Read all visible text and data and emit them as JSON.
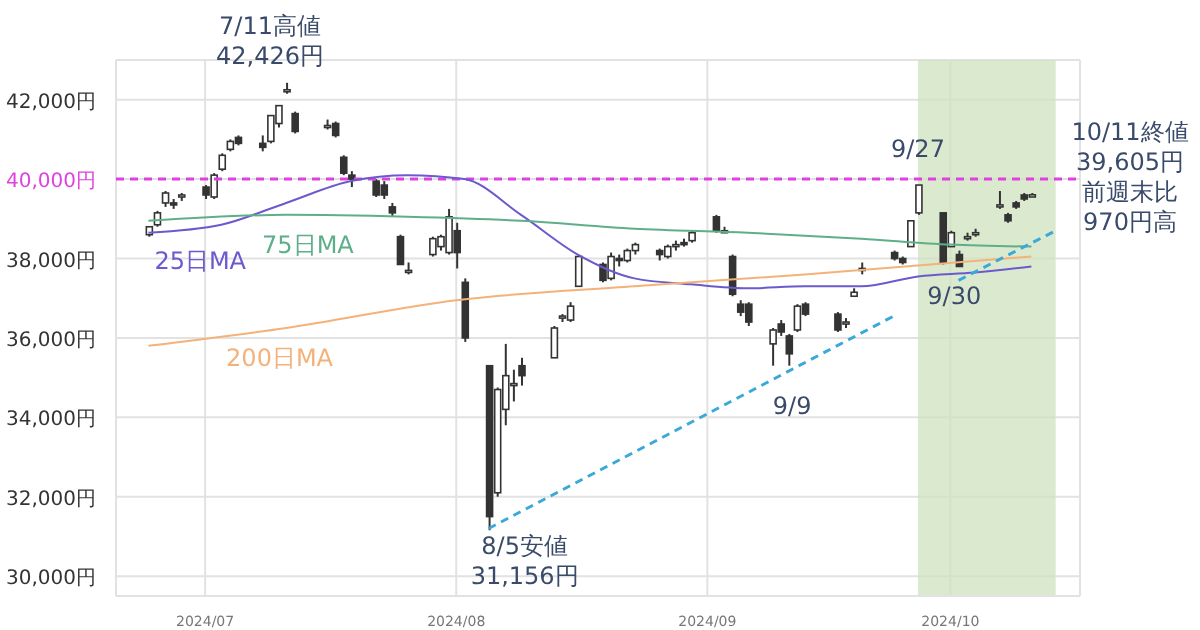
{
  "chart_data": {
    "type": "candlestick",
    "grid": true,
    "marker": "none",
    "x": [
      "2024-06-24",
      "2024-06-25",
      "2024-06-26",
      "2024-06-27",
      "2024-06-28",
      "2024-07-01",
      "2024-07-02",
      "2024-07-03",
      "2024-07-04",
      "2024-07-05",
      "2024-07-08",
      "2024-07-09",
      "2024-07-10",
      "2024-07-11",
      "2024-07-12",
      "2024-07-16",
      "2024-07-17",
      "2024-07-18",
      "2024-07-19",
      "2024-07-22",
      "2024-07-23",
      "2024-07-24",
      "2024-07-25",
      "2024-07-26",
      "2024-07-29",
      "2024-07-30",
      "2024-07-31",
      "2024-08-01",
      "2024-08-02",
      "2024-08-05",
      "2024-08-06",
      "2024-08-07",
      "2024-08-08",
      "2024-08-09",
      "2024-08-13",
      "2024-08-14",
      "2024-08-15",
      "2024-08-16",
      "2024-08-19",
      "2024-08-20",
      "2024-08-21",
      "2024-08-22",
      "2024-08-23",
      "2024-08-26",
      "2024-08-27",
      "2024-08-28",
      "2024-08-29",
      "2024-08-30",
      "2024-09-02",
      "2024-09-03",
      "2024-09-04",
      "2024-09-05",
      "2024-09-06",
      "2024-09-09",
      "2024-09-10",
      "2024-09-11",
      "2024-09-12",
      "2024-09-13",
      "2024-09-17",
      "2024-09-18",
      "2024-09-19",
      "2024-09-20",
      "2024-09-24",
      "2024-09-25",
      "2024-09-26",
      "2024-09-27",
      "2024-09-30",
      "2024-10-01",
      "2024-10-02",
      "2024-10-03",
      "2024-10-04",
      "2024-10-07",
      "2024-10-08",
      "2024-10-09",
      "2024-10-10",
      "2024-10-11"
    ],
    "ohlc": [
      [
        38600,
        38800,
        38550,
        38800
      ],
      [
        38850,
        39200,
        38800,
        39150
      ],
      [
        39400,
        39700,
        39300,
        39650
      ],
      [
        39400,
        39500,
        39250,
        39350
      ],
      [
        39550,
        39650,
        39450,
        39600
      ],
      [
        39800,
        39850,
        39500,
        39600
      ],
      [
        39550,
        40150,
        39500,
        40100
      ],
      [
        40250,
        40650,
        40200,
        40600
      ],
      [
        40750,
        41000,
        40700,
        40950
      ],
      [
        41050,
        41100,
        40850,
        40900
      ],
      [
        40900,
        41100,
        40700,
        40800
      ],
      [
        40950,
        41600,
        40900,
        41600
      ],
      [
        41400,
        41850,
        41300,
        41850
      ],
      [
        42200,
        42426,
        42150,
        42250
      ],
      [
        41650,
        41700,
        41150,
        41200
      ],
      [
        41300,
        41500,
        41250,
        41350
      ],
      [
        41400,
        41450,
        41050,
        41100
      ],
      [
        40550,
        40600,
        40100,
        40150
      ],
      [
        40100,
        40200,
        39800,
        40000
      ],
      [
        39950,
        40000,
        39550,
        39600
      ],
      [
        39850,
        39950,
        39500,
        39600
      ],
      [
        39300,
        39400,
        39050,
        39150
      ],
      [
        38550,
        38600,
        37850,
        37850
      ],
      [
        37700,
        37900,
        37600,
        37700
      ],
      [
        38100,
        38550,
        38050,
        38500
      ],
      [
        38300,
        38600,
        38200,
        38550
      ],
      [
        38150,
        39250,
        38100,
        39050
      ],
      [
        38700,
        38900,
        37750,
        38150
      ],
      [
        37400,
        37500,
        35900,
        36000
      ],
      [
        35300,
        35300,
        31156,
        31500
      ],
      [
        32100,
        34750,
        32000,
        34700
      ],
      [
        34200,
        35850,
        33800,
        35050
      ],
      [
        34800,
        35200,
        34400,
        34850
      ],
      [
        35300,
        35500,
        34800,
        35050
      ],
      [
        35500,
        36300,
        35500,
        36250
      ],
      [
        36550,
        36600,
        36400,
        36550
      ],
      [
        36450,
        36900,
        36400,
        36800
      ],
      [
        37300,
        38100,
        37300,
        38050
      ],
      [
        37850,
        37900,
        37400,
        37450
      ],
      [
        37500,
        38150,
        37450,
        38050
      ],
      [
        38000,
        38100,
        37800,
        37950
      ],
      [
        37950,
        38250,
        37900,
        38200
      ],
      [
        38200,
        38400,
        38100,
        38350
      ],
      [
        38200,
        38250,
        37950,
        38100
      ],
      [
        38050,
        38350,
        38000,
        38300
      ],
      [
        38300,
        38450,
        38200,
        38350
      ],
      [
        38400,
        38500,
        38300,
        38350
      ],
      [
        38450,
        38700,
        38400,
        38650
      ],
      [
        39050,
        39100,
        38650,
        38700
      ],
      [
        38700,
        38800,
        38650,
        38700
      ],
      [
        38050,
        38100,
        37050,
        37100
      ],
      [
        36850,
        36950,
        36550,
        36650
      ],
      [
        36850,
        36900,
        36300,
        36400
      ],
      [
        35850,
        36250,
        35300,
        36200
      ],
      [
        36350,
        36450,
        36050,
        36150
      ],
      [
        36050,
        36100,
        35300,
        35600
      ],
      [
        36200,
        36850,
        36150,
        36800
      ],
      [
        36850,
        36900,
        36550,
        36600
      ],
      [
        36600,
        36650,
        36150,
        36200
      ],
      [
        36400,
        36500,
        36250,
        36400
      ],
      [
        37050,
        37250,
        37050,
        37150
      ],
      [
        37700,
        37900,
        37600,
        37750
      ],
      [
        38150,
        38200,
        37950,
        38000
      ],
      [
        38000,
        38050,
        37850,
        37900
      ],
      [
        38300,
        38950,
        38300,
        38950
      ],
      [
        39150,
        39850,
        39100,
        39850
      ],
      [
        39150,
        39150,
        37850,
        37900
      ],
      [
        38300,
        38700,
        38300,
        38650
      ],
      [
        38100,
        38200,
        37800,
        37800
      ],
      [
        38550,
        38650,
        38450,
        38550
      ],
      [
        38600,
        38750,
        38550,
        38650
      ],
      [
        39300,
        39700,
        39250,
        39350
      ],
      [
        39100,
        39150,
        38900,
        38950
      ],
      [
        39400,
        39450,
        39250,
        39300
      ],
      [
        39600,
        39650,
        39450,
        39500
      ],
      [
        39550,
        39650,
        39550,
        39605
      ]
    ],
    "series": [
      {
        "type": "line",
        "name": "25日MA",
        "color": "#6a5acd",
        "x": [
          "2024-06-24",
          "2024-07-03",
          "2024-07-11",
          "2024-07-19",
          "2024-07-26",
          "2024-08-02",
          "2024-08-09",
          "2024-08-16",
          "2024-08-23",
          "2024-08-30",
          "2024-09-06",
          "2024-09-13",
          "2024-09-20",
          "2024-09-27",
          "2024-10-04",
          "2024-10-11"
        ],
        "values": [
          38650,
          38850,
          39400,
          39950,
          40100,
          40000,
          39100,
          38100,
          37500,
          37350,
          37250,
          37300,
          37300,
          37550,
          37650,
          37800
        ]
      },
      {
        "type": "line",
        "name": "75日MA",
        "color": "#5fae8a",
        "x": [
          "2024-06-24",
          "2024-07-11",
          "2024-07-26",
          "2024-08-09",
          "2024-08-23",
          "2024-09-06",
          "2024-09-20",
          "2024-10-01",
          "2024-10-11"
        ],
        "values": [
          38950,
          39100,
          39050,
          38950,
          38750,
          38650,
          38500,
          38350,
          38300
        ]
      },
      {
        "type": "line",
        "name": "200日MA",
        "color": "#f4b27a",
        "x": [
          "2024-06-24",
          "2024-07-11",
          "2024-08-01",
          "2024-08-23",
          "2024-09-13",
          "2024-10-11"
        ],
        "values": [
          35800,
          36250,
          36950,
          37300,
          37600,
          38050
        ]
      },
      {
        "type": "line",
        "color": "#3aa8d8",
        "line_style": "dashed",
        "x": [
          "2024-08-05",
          "2024-09-24"
        ],
        "values": [
          31200,
          36550
        ]
      },
      {
        "type": "line",
        "color": "#3aa8d8",
        "line_style": "dashed",
        "x": [
          "2024-10-02",
          "2024-10-14"
        ],
        "values": [
          37450,
          38700
        ]
      }
    ],
    "xlim": [
      "2024-06-20",
      "2024-10-17"
    ],
    "xticks": [
      {
        "value": "2024-07-01",
        "label": "2024/07"
      },
      {
        "value": "2024-08-01",
        "label": "2024/08"
      },
      {
        "value": "2024-09-01",
        "label": "2024/09"
      },
      {
        "value": "2024-10-01",
        "label": "2024/10"
      }
    ],
    "ylim": [
      29500,
      43000
    ],
    "yticks": [
      {
        "value": 30000,
        "label": "30,000円"
      },
      {
        "value": 32000,
        "label": "32,000円"
      },
      {
        "value": 34000,
        "label": "34,000円"
      },
      {
        "value": 36000,
        "label": "36,000円"
      },
      {
        "value": 38000,
        "label": "38,000円"
      },
      {
        "value": 40000,
        "label": "40,000円"
      },
      {
        "value": 42000,
        "label": "42,000円"
      }
    ],
    "ref_lines": [
      {
        "axis": "y",
        "value": 40000,
        "color": "#e040e0",
        "line_style": "dashed"
      }
    ],
    "bands": [
      {
        "axis": "x",
        "from": "2024-09-27",
        "to": "2024-10-14",
        "color": "#cfe3bf"
      }
    ],
    "annotations": [
      "7/11高値\n42,426円",
      {
        "text": "8/5安値\n31,156円",
        "x": "2024-08-05",
        "y": 31156
      },
      {
        "text": "9/27",
        "x": "2024-09-27",
        "y": 39850
      },
      {
        "text": "9/30",
        "x": "2024-09-30",
        "y": 37850
      },
      {
        "text": "9/9",
        "x": "2024-09-09",
        "y": 35300
      },
      "10/11終値",
      "39,605円",
      "前週末比",
      "970円高"
    ]
  }
}
